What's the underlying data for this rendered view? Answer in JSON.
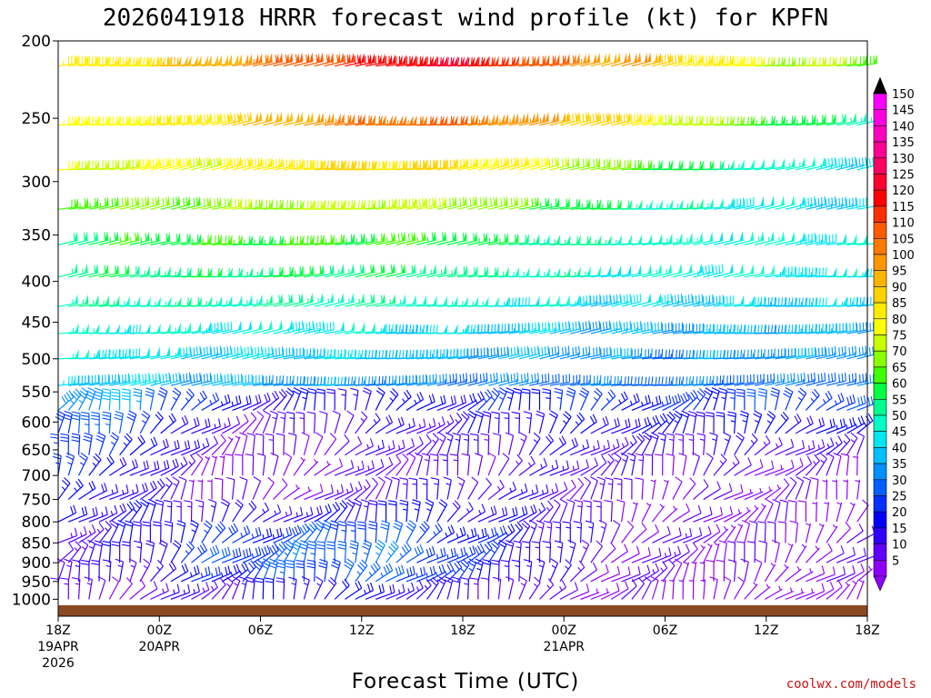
{
  "chart_data": {
    "type": "wind_barb_profile",
    "title": "2026041918 HRRR forecast wind profile (kt) for KPFN",
    "xlabel": "Forecast Time (UTC)",
    "credit": "coolwx.com/models",
    "units": "kt",
    "y_axis": {
      "scale": "log",
      "inverted": true,
      "range": [
        1050,
        200
      ],
      "ticks": [
        200,
        250,
        300,
        350,
        400,
        450,
        500,
        550,
        600,
        650,
        700,
        750,
        800,
        850,
        900,
        950,
        1000
      ]
    },
    "x_axis": {
      "range_hours": [
        0,
        48
      ],
      "ticks": [
        {
          "hour": 0,
          "label": "18Z",
          "sub1": "19APR",
          "sub2": "2026"
        },
        {
          "hour": 6,
          "label": "00Z",
          "sub1": "20APR",
          "sub2": ""
        },
        {
          "hour": 12,
          "label": "06Z",
          "sub1": "",
          "sub2": ""
        },
        {
          "hour": 18,
          "label": "12Z",
          "sub1": "",
          "sub2": ""
        },
        {
          "hour": 24,
          "label": "18Z",
          "sub1": "",
          "sub2": ""
        },
        {
          "hour": 30,
          "label": "00Z",
          "sub1": "21APR",
          "sub2": ""
        },
        {
          "hour": 36,
          "label": "06Z",
          "sub1": "",
          "sub2": ""
        },
        {
          "hour": 42,
          "label": "12Z",
          "sub1": "",
          "sub2": ""
        },
        {
          "hour": 48,
          "label": "18Z",
          "sub1": "",
          "sub2": ""
        }
      ]
    },
    "levels": [
      {
        "p": 215,
        "speed": [
          85,
          90,
          100,
          110,
          120,
          125,
          118,
          105,
          95,
          82,
          75,
          70
        ]
      },
      {
        "p": 255,
        "speed": [
          80,
          85,
          90,
          100,
          108,
          110,
          105,
          95,
          82,
          70,
          62,
          55
        ]
      },
      {
        "p": 290,
        "speed": [
          78,
          80,
          82,
          88,
          92,
          90,
          85,
          75,
          65,
          55,
          50,
          45
        ]
      },
      {
        "p": 325,
        "speed": [
          68,
          70,
          72,
          75,
          78,
          76,
          70,
          62,
          55,
          50,
          47,
          45
        ]
      },
      {
        "p": 360,
        "speed": [
          62,
          63,
          65,
          66,
          66,
          64,
          60,
          55,
          52,
          52,
          50,
          48
        ]
      },
      {
        "p": 395,
        "speed": [
          58,
          58,
          59,
          60,
          60,
          58,
          56,
          52,
          50,
          50,
          48,
          47
        ]
      },
      {
        "p": 430,
        "speed": [
          54,
          55,
          55,
          56,
          55,
          53,
          50,
          47,
          45,
          45,
          45,
          45
        ]
      },
      {
        "p": 465,
        "speed": [
          52,
          50,
          50,
          48,
          48,
          46,
          44,
          42,
          40,
          42,
          42,
          42
        ]
      },
      {
        "p": 500,
        "speed": [
          50,
          47,
          45,
          44,
          44,
          42,
          40,
          38,
          37,
          38,
          38,
          38
        ]
      },
      {
        "p": 540,
        "speed": [
          45,
          43,
          40,
          38,
          38,
          36,
          35,
          34,
          33,
          34,
          34,
          34
        ]
      },
      {
        "p": 580,
        "speed": [
          40,
          38,
          22,
          20,
          20,
          22,
          24,
          25,
          26,
          27,
          28,
          28
        ]
      },
      {
        "p": 620,
        "speed": [
          32,
          30,
          12,
          12,
          14,
          16,
          18,
          20,
          22,
          22,
          22,
          22
        ]
      },
      {
        "p": 660,
        "speed": [
          28,
          25,
          10,
          10,
          12,
          14,
          15,
          16,
          16,
          15,
          14,
          14
        ]
      },
      {
        "p": 700,
        "speed": [
          25,
          20,
          8,
          9,
          10,
          12,
          13,
          14,
          12,
          10,
          10,
          10
        ]
      },
      {
        "p": 750,
        "speed": [
          22,
          18,
          8,
          9,
          12,
          14,
          15,
          12,
          10,
          8,
          8,
          8
        ]
      },
      {
        "p": 800,
        "speed": [
          20,
          20,
          15,
          18,
          20,
          22,
          18,
          12,
          8,
          8,
          8,
          8
        ]
      },
      {
        "p": 850,
        "speed": [
          15,
          18,
          25,
          28,
          30,
          28,
          22,
          14,
          10,
          9,
          9,
          9
        ]
      },
      {
        "p": 900,
        "speed": [
          15,
          18,
          28,
          32,
          34,
          30,
          22,
          12,
          10,
          9,
          9,
          9
        ]
      },
      {
        "p": 950,
        "speed": [
          14,
          16,
          25,
          30,
          32,
          28,
          20,
          12,
          10,
          8,
          8,
          8
        ]
      },
      {
        "p": 1000,
        "speed": [
          10,
          12,
          15,
          18,
          20,
          18,
          14,
          10,
          8,
          6,
          6,
          6
        ]
      }
    ],
    "colorbar": {
      "ticks": [
        150,
        145,
        140,
        135,
        130,
        125,
        120,
        115,
        110,
        105,
        100,
        95,
        90,
        85,
        80,
        75,
        70,
        65,
        60,
        55,
        50,
        45,
        40,
        35,
        30,
        25,
        20,
        15,
        10,
        5
      ],
      "bands": [
        {
          "v": 150,
          "color": "#ff00ff"
        },
        {
          "v": 145,
          "color": "#ff00e0"
        },
        {
          "v": 140,
          "color": "#ff00c0"
        },
        {
          "v": 135,
          "color": "#ff0090"
        },
        {
          "v": 130,
          "color": "#ff0060"
        },
        {
          "v": 125,
          "color": "#ff0030"
        },
        {
          "v": 120,
          "color": "#ff0000"
        },
        {
          "v": 115,
          "color": "#ff3000"
        },
        {
          "v": 110,
          "color": "#ff5a00"
        },
        {
          "v": 105,
          "color": "#ff7a00"
        },
        {
          "v": 100,
          "color": "#ff9600"
        },
        {
          "v": 95,
          "color": "#ffb400"
        },
        {
          "v": 90,
          "color": "#ffd200"
        },
        {
          "v": 85,
          "color": "#ffec00"
        },
        {
          "v": 80,
          "color": "#ffff00"
        },
        {
          "v": 75,
          "color": "#c8ff00"
        },
        {
          "v": 70,
          "color": "#8cff00"
        },
        {
          "v": 65,
          "color": "#40ff00"
        },
        {
          "v": 60,
          "color": "#00ff40"
        },
        {
          "v": 55,
          "color": "#00ff90"
        },
        {
          "v": 50,
          "color": "#00ffc8"
        },
        {
          "v": 45,
          "color": "#00e6f0"
        },
        {
          "v": 40,
          "color": "#00c0ff"
        },
        {
          "v": 35,
          "color": "#0090ff"
        },
        {
          "v": 30,
          "color": "#0060ff"
        },
        {
          "v": 25,
          "color": "#0030ff"
        },
        {
          "v": 20,
          "color": "#0000ff"
        },
        {
          "v": 15,
          "color": "#3000ff"
        },
        {
          "v": 10,
          "color": "#6000ff"
        },
        {
          "v": 5,
          "color": "#9000ff"
        }
      ]
    },
    "ground_color": "#8b4a22"
  }
}
